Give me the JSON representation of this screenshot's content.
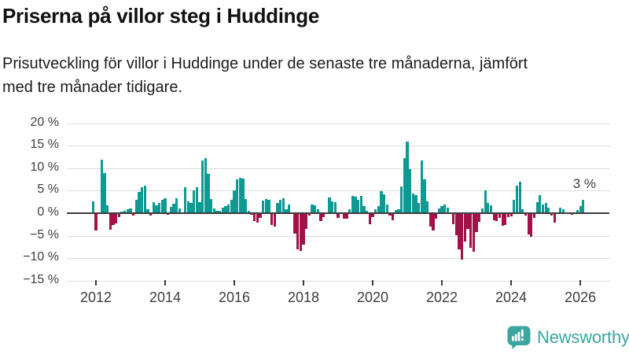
{
  "page": {
    "title": "Priserna på villor steg i Huddinge",
    "subtitle": "Prisutveckling för villor i Huddinge under de senaste tre månaderna, jämfört med tre månader tidigare."
  },
  "footer": {
    "brand": "Newsworthy",
    "logo_icon": "newsworthy-speech-bubble-barchart-icon",
    "brand_color": "#3ca69e"
  },
  "chart_data": {
    "type": "bar",
    "unit": "%",
    "frequency": "monthly",
    "start_month": "2011-12",
    "end_month": "2026-02",
    "values": [
      2.6,
      -3.9,
      0.0,
      11.9,
      8.9,
      1.7,
      -3.6,
      -2.6,
      -2.3,
      -0.9,
      0.4,
      0.6,
      0.8,
      1.1,
      -0.5,
      2.9,
      4.7,
      5.7,
      6.2,
      0.9,
      -0.6,
      2.4,
      1.7,
      2.2,
      3.0,
      3.4,
      -0.4,
      1.4,
      2.1,
      3.3,
      1.0,
      0.0,
      5.8,
      2.6,
      2.3,
      5.0,
      5.7,
      2.4,
      11.8,
      12.2,
      8.7,
      3.2,
      1.0,
      0.5,
      0.6,
      1.2,
      1.5,
      1.9,
      3.0,
      5.0,
      7.6,
      7.9,
      7.7,
      3.2,
      0.6,
      -0.3,
      -1.8,
      -2.1,
      -1.0,
      2.8,
      3.2,
      3.0,
      -2.6,
      -3.0,
      2.3,
      2.9,
      3.4,
      0.9,
      2.0,
      0.0,
      -4.6,
      -8.0,
      -8.4,
      -7.0,
      -3.5,
      -0.5,
      1.9,
      1.8,
      0.9,
      -1.7,
      -0.9,
      0.0,
      3.5,
      2.6,
      2.4,
      -1.0,
      0.0,
      -1.3,
      -1.2,
      0.9,
      3.8,
      3.7,
      3.0,
      3.9,
      1.5,
      0.5,
      -2.5,
      -0.8,
      0.8,
      1.5,
      4.9,
      4.2,
      2.0,
      -0.6,
      -1.5,
      0.7,
      0.8,
      6.0,
      12.3,
      16.0,
      9.8,
      4.3,
      4.0,
      2.2,
      11.8,
      7.6,
      2.7,
      -2.9,
      -3.8,
      -1.2,
      1.1,
      1.5,
      1.9,
      1.3,
      0.0,
      -2.5,
      -4.9,
      -8.0,
      -10.3,
      -6.3,
      -3.5,
      -7.7,
      -8.5,
      -4.2,
      -2.0,
      1.0,
      5.1,
      2.2,
      1.8,
      -1.5,
      -1.8,
      -1.0,
      -2.8,
      -2.7,
      -0.9,
      -0.7,
      2.9,
      6.2,
      7.0,
      0.8,
      -0.6,
      -4.7,
      -5.2,
      -1.0,
      2.5,
      4.0,
      2.0,
      2.2,
      1.3,
      -0.6,
      -2.1,
      0.0,
      1.2,
      0.8,
      0.0,
      0.0,
      -0.4,
      0.0,
      0.7,
      1.6,
      2.9
    ],
    "yticks": [
      20,
      15,
      10,
      5,
      0,
      -5,
      -10,
      -15
    ],
    "ytick_labels": [
      "20 %",
      "15 %",
      "10 %",
      "5 %",
      "0 %",
      "−5 %",
      "−10 %",
      "−15 %"
    ],
    "ylim": [
      -15,
      20
    ],
    "xticks": [
      2012,
      2014,
      2016,
      2018,
      2020,
      2022,
      2024,
      2026
    ],
    "annotation": "3 %",
    "latest_value_pct": 3,
    "positive_color": "#0e9a93",
    "negative_color": "#a21147",
    "grid": "horizontal",
    "legend": "none"
  }
}
